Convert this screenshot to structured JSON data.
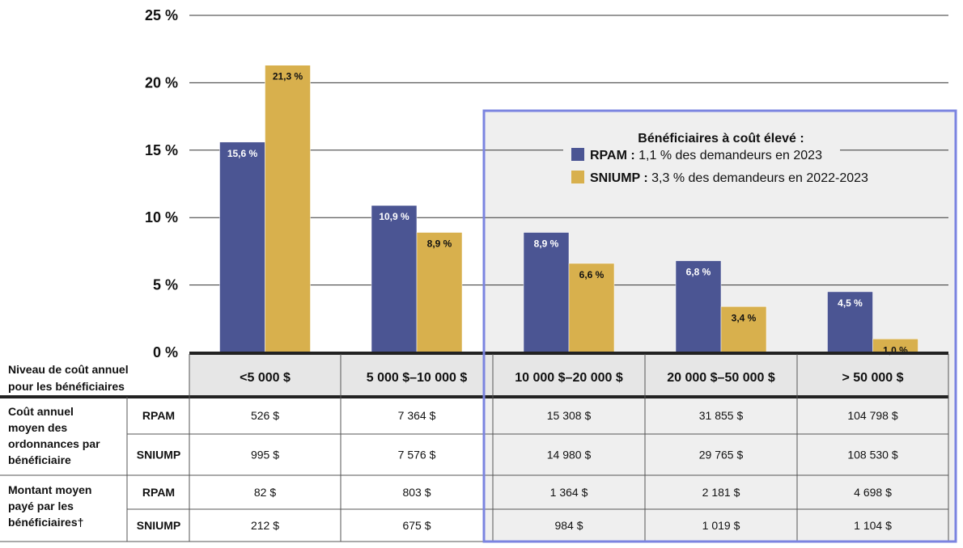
{
  "chart_data": {
    "type": "bar",
    "categories": [
      "<5 000 $",
      "5 000 $–10 000 $",
      "10 000 $–20 000 $",
      "20 000 $–50 000 $",
      "> 50 000 $"
    ],
    "series": [
      {
        "name": "RPAM",
        "values": [
          15.6,
          10.9,
          8.9,
          6.8,
          4.5
        ],
        "labels": [
          "15,6 %",
          "10,9 %",
          "8,9 %",
          "6,8 %",
          "4,5 %"
        ],
        "color": "#4b5593"
      },
      {
        "name": "SNIUMP",
        "values": [
          21.3,
          8.9,
          6.6,
          3.4,
          1.0
        ],
        "labels": [
          "21,3 %",
          "8,9 %",
          "6,6 %",
          "3,4 %",
          "1,0 %"
        ],
        "color": "#d8b04d"
      }
    ],
    "y_ticks": [
      "0 %",
      "5 %",
      "10 %",
      "15 %",
      "20 %",
      "25 %"
    ],
    "ylim": [
      0,
      25
    ],
    "grid": true,
    "highlight": {
      "categories": [
        "10 000 $–20 000 $",
        "20 000 $–50 000 $",
        "> 50 000 $"
      ],
      "border_color": "#7b84e0",
      "fill_color": "#efefef"
    },
    "legend": {
      "placement": "top-right",
      "title": "Bénéficiaires à coût élevé :",
      "entries": [
        {
          "name": "RPAM :",
          "text": "1,1 % des demandeurs en 2023"
        },
        {
          "name": "SNIUMP :",
          "text": "3,3 % des demandeurs en 2022-2023"
        }
      ]
    },
    "table": {
      "header_label_line1": "Niveau de coût annuel",
      "header_label_line2": "pour les bénéficiaires",
      "groups": [
        {
          "label_lines": [
            "Coût annuel",
            "moyen des",
            "ordonnances par",
            "bénéficiaire"
          ],
          "rows": [
            {
              "program": "RPAM",
              "values": [
                "526 $",
                "7 364 $",
                "15 308 $",
                "31 855 $",
                "104 798 $"
              ]
            },
            {
              "program": "SNIUMP",
              "values": [
                "995 $",
                "7 576 $",
                "14 980 $",
                "29 765 $",
                "108 530 $"
              ]
            }
          ]
        },
        {
          "label_lines": [
            "Montant moyen",
            "payé par les",
            "bénéficiaires†"
          ],
          "rows": [
            {
              "program": "RPAM",
              "values": [
                "82 $",
                "803 $",
                "1 364 $",
                "2 181 $",
                "4 698 $"
              ]
            },
            {
              "program": "SNIUMP",
              "values": [
                "212 $",
                "675 $",
                "984 $",
                "1 019 $",
                "1 104 $"
              ]
            }
          ]
        }
      ]
    }
  }
}
